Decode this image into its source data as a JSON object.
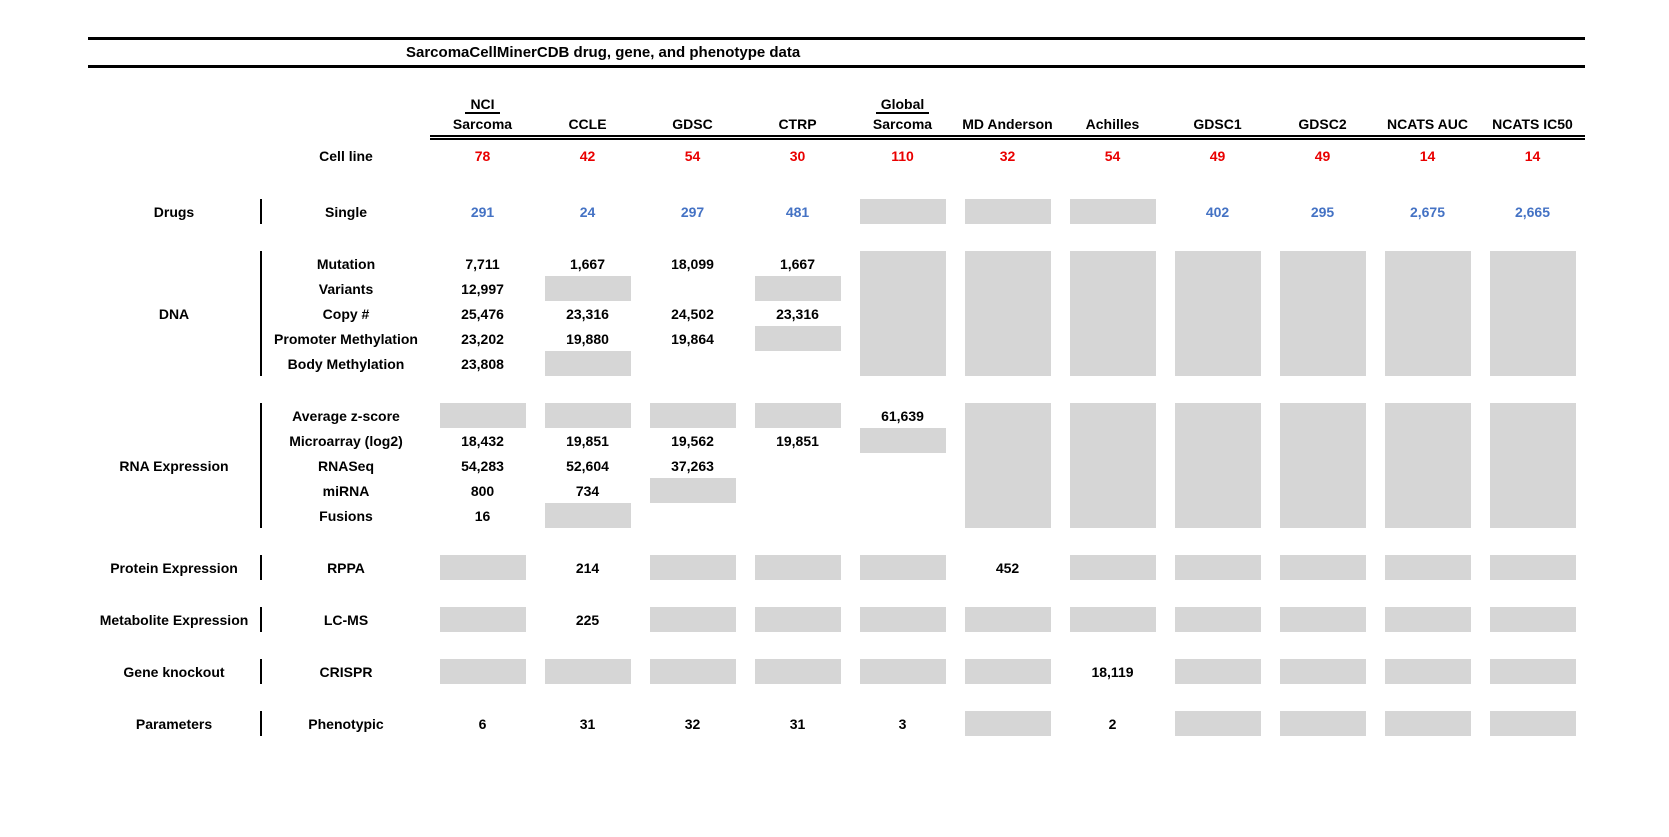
{
  "title": "SarcomaCellMinerCDB drug, gene, and phenotype data",
  "colors": {
    "red_values": "#e90000",
    "blue_values": "#4472c4",
    "unavailable_gray": "#d6d6d6"
  },
  "columns": [
    {
      "line1": "NCI",
      "line2": "Sarcoma"
    },
    {
      "line1": "",
      "line2": "CCLE"
    },
    {
      "line1": "",
      "line2": "GDSC"
    },
    {
      "line1": "",
      "line2": "CTRP"
    },
    {
      "line1": "Global",
      "line2": "Sarcoma"
    },
    {
      "line1": "",
      "line2": "MD Anderson"
    },
    {
      "line1": "",
      "line2": "Achilles"
    },
    {
      "line1": "",
      "line2": "GDSC1"
    },
    {
      "line1": "",
      "line2": "GDSC2"
    },
    {
      "line1": "",
      "line2": "NCATS AUC"
    },
    {
      "line1": "",
      "line2": "NCATS IC50"
    }
  ],
  "cell_line": {
    "label": "Cell line",
    "values": [
      "78",
      "42",
      "54",
      "30",
      "110",
      "32",
      "54",
      "49",
      "49",
      "14",
      "14"
    ]
  },
  "sections": [
    {
      "group": "Drugs",
      "rows": [
        {
          "label": "Single",
          "color": "blue",
          "cells": [
            "291",
            "24",
            "297",
            "481",
            "GRAY",
            "GRAY",
            "GRAY",
            "402",
            "295",
            "2,675",
            "2,665"
          ]
        }
      ]
    },
    {
      "group": "DNA",
      "rows": [
        {
          "label": "Mutation",
          "cells": [
            "7,711",
            "1,667",
            "18,099",
            "1,667",
            "GRAY",
            "GRAY",
            "GRAY",
            "GRAY",
            "GRAY",
            "GRAY",
            "GRAY"
          ]
        },
        {
          "label": "Variants",
          "cells": [
            "12,997",
            "GRAY",
            "",
            "GRAY",
            "GRAY",
            "GRAY",
            "GRAY",
            "GRAY",
            "GRAY",
            "GRAY",
            "GRAY"
          ]
        },
        {
          "label": "Copy #",
          "cells": [
            "25,476",
            "23,316",
            "24,502",
            "23,316",
            "GRAY",
            "GRAY",
            "GRAY",
            "GRAY",
            "GRAY",
            "GRAY",
            "GRAY"
          ]
        },
        {
          "label": "Promoter Methylation",
          "cells": [
            "23,202",
            "19,880",
            "19,864",
            "GRAY",
            "GRAY",
            "GRAY",
            "GRAY",
            "GRAY",
            "GRAY",
            "GRAY",
            "GRAY"
          ]
        },
        {
          "label": "Body Methylation",
          "cells": [
            "23,808",
            "GRAY",
            "",
            "",
            "GRAY",
            "GRAY",
            "GRAY",
            "GRAY",
            "GRAY",
            "GRAY",
            "GRAY"
          ]
        }
      ]
    },
    {
      "group": "RNA Expression",
      "rows": [
        {
          "label": "Average z-score",
          "cells": [
            "GRAY",
            "GRAY",
            "GRAY",
            "GRAY",
            "61,639",
            "GRAY",
            "GRAY",
            "GRAY",
            "GRAY",
            "GRAY",
            "GRAY"
          ]
        },
        {
          "label": "Microarray (log2)",
          "cells": [
            "18,432",
            "19,851",
            "19,562",
            "19,851",
            "GRAY",
            "GRAY",
            "GRAY",
            "GRAY",
            "GRAY",
            "GRAY",
            "GRAY"
          ]
        },
        {
          "label": "RNASeq",
          "cells": [
            "54,283",
            "52,604",
            "37,263",
            "",
            "",
            "GRAY",
            "GRAY",
            "GRAY",
            "GRAY",
            "GRAY",
            "GRAY"
          ]
        },
        {
          "label": "miRNA",
          "cells": [
            "800",
            "734",
            "GRAY",
            "",
            "",
            "GRAY",
            "GRAY",
            "GRAY",
            "GRAY",
            "GRAY",
            "GRAY"
          ]
        },
        {
          "label": "Fusions",
          "cells": [
            "16",
            "GRAY",
            "",
            "",
            "",
            "GRAY",
            "GRAY",
            "GRAY",
            "GRAY",
            "GRAY",
            "GRAY"
          ]
        }
      ]
    },
    {
      "group": "Protein Expression",
      "rows": [
        {
          "label": "RPPA",
          "cells": [
            "GRAY",
            "214",
            "GRAY",
            "GRAY",
            "GRAY",
            "452",
            "GRAY",
            "GRAY",
            "GRAY",
            "GRAY",
            "GRAY"
          ]
        }
      ]
    },
    {
      "group": "Metabolite Expression",
      "rows": [
        {
          "label": "LC-MS",
          "cells": [
            "GRAY",
            "225",
            "GRAY",
            "GRAY",
            "GRAY",
            "GRAY",
            "GRAY",
            "GRAY",
            "GRAY",
            "GRAY",
            "GRAY"
          ]
        }
      ]
    },
    {
      "group": "Gene knockout",
      "rows": [
        {
          "label": "CRISPR",
          "cells": [
            "GRAY",
            "GRAY",
            "GRAY",
            "GRAY",
            "GRAY",
            "GRAY",
            "18,119",
            "GRAY",
            "GRAY",
            "GRAY",
            "GRAY"
          ]
        }
      ]
    },
    {
      "group": "Parameters",
      "rows": [
        {
          "label": "Phenotypic",
          "cells": [
            "6",
            "31",
            "32",
            "31",
            "3",
            "GRAY",
            "2",
            "GRAY",
            "GRAY",
            "GRAY",
            "GRAY"
          ]
        }
      ]
    }
  ]
}
